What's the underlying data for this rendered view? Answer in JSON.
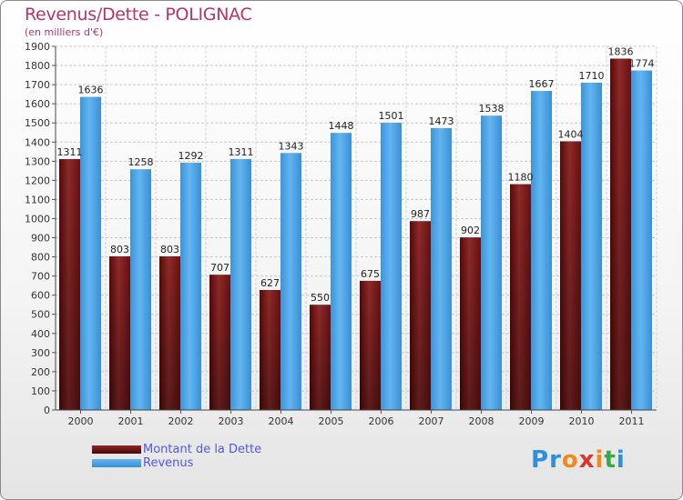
{
  "title": "Revenus/Dette - POLIGNAC",
  "subtitle": "(en milliers d'€)",
  "logo": {
    "letters": [
      "P",
      "r",
      "o",
      "x",
      "i",
      "t",
      "i"
    ],
    "colors": [
      "#2f8fd8",
      "#2f8fd8",
      "#f08a1d",
      "#d8362f",
      "#f08a1d",
      "#3aa845",
      "#2f8fd8"
    ]
  },
  "chart_data": {
    "type": "bar",
    "categories": [
      "2000",
      "2001",
      "2002",
      "2003",
      "2004",
      "2005",
      "2006",
      "2007",
      "2008",
      "2009",
      "2010",
      "2011"
    ],
    "series": [
      {
        "name": "Montant de la Dette",
        "values": [
          1311,
          803,
          803,
          707,
          627,
          550,
          675,
          987,
          902,
          1180,
          1404,
          1836
        ],
        "color": "#7a1a1a"
      },
      {
        "name": "Revenus",
        "values": [
          1636,
          1258,
          1292,
          1311,
          1343,
          1448,
          1501,
          1473,
          1538,
          1667,
          1710,
          1774
        ],
        "color": "#4aa3e6"
      }
    ],
    "ylim": [
      0,
      1900
    ],
    "yticks": [
      0,
      100,
      200,
      300,
      400,
      500,
      600,
      700,
      800,
      900,
      1000,
      1100,
      1200,
      1300,
      1400,
      1500,
      1600,
      1700,
      1800,
      1900
    ],
    "grid": true,
    "legend_position": "bottom-left"
  }
}
